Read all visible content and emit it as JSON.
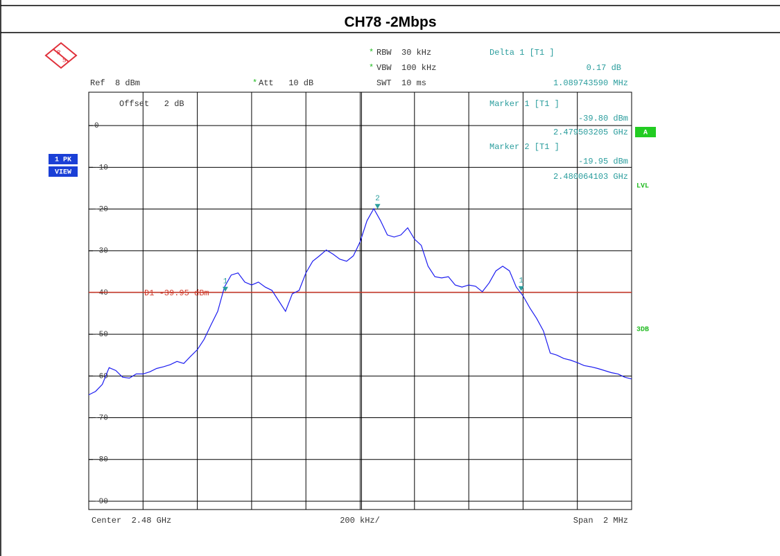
{
  "chart_data": {
    "type": "line",
    "title": "CH78 -2Mbps",
    "logo": [
      "R",
      "S"
    ],
    "settings": {
      "rbw_star": "*",
      "rbw": "RBW  30 kHz",
      "vbw_star": "*",
      "vbw": "VBW  100 kHz",
      "swt": "SWT  10 ms",
      "ref": "Ref  8 dBm",
      "att_star": "*",
      "att": "Att   10 dB",
      "offset": "Offset   2 dB"
    },
    "side_labels": {
      "trace_mode": "1 PK",
      "view": "VIEW",
      "a": "A",
      "lvl": "LVL",
      "db3": "3DB"
    },
    "footer": {
      "center": "Center  2.48 GHz",
      "per_div": "200 kHz/",
      "span": "Span  2 MHz"
    },
    "xlim": [
      2.479,
      2.481
    ],
    "ylim": [
      -92,
      8
    ],
    "yticks": [
      0,
      -10,
      -20,
      -30,
      -40,
      -50,
      -60,
      -70,
      -80,
      -90
    ],
    "grid": true,
    "display_line": {
      "label": "D1 -39.95 dBm",
      "value": -39.95,
      "color": "#d03a2a"
    },
    "markers": [
      {
        "name": "1",
        "header": "Marker 1 [T1 ]",
        "x": 2.479503205,
        "value": -39.8,
        "value_label": "-39.80 dBm",
        "x_label": "2.479503205 GHz"
      },
      {
        "name": "2",
        "header": "Marker 2 [T1 ]",
        "x": 2.480064103,
        "value": -19.95,
        "value_label": "-19.95 dBm",
        "x_label": "2.480064103 GHz"
      }
    ],
    "delta_marker": {
      "name": "1",
      "header": "Delta 1 [T1 ]",
      "x": 0.00108974359,
      "value": 0.17,
      "value_label": "0.17 dB",
      "x_label": "1.089743590 MHz"
    },
    "marker_color": "#2a9d9d",
    "series": [
      {
        "name": "1 PK",
        "color": "#1c1cf0",
        "x": [
          2.479,
          2.479025,
          2.47905,
          2.479075,
          2.4791,
          2.479125,
          2.47915,
          2.479175,
          2.4792,
          2.479225,
          2.47925,
          2.479275,
          2.4793,
          2.479325,
          2.47935,
          2.479375,
          2.4794,
          2.479425,
          2.47945,
          2.479475,
          2.4795,
          2.479525,
          2.47955,
          2.479575,
          2.4796,
          2.479625,
          2.47965,
          2.479675,
          2.4797,
          2.479725,
          2.47975,
          2.479775,
          2.4798,
          2.479825,
          2.47985,
          2.479875,
          2.4799,
          2.479925,
          2.47995,
          2.479975,
          2.48,
          2.480025,
          2.48005,
          2.480075,
          2.4801,
          2.480125,
          2.48015,
          2.480175,
          2.4802,
          2.480225,
          2.48025,
          2.480275,
          2.4803,
          2.480325,
          2.48035,
          2.480375,
          2.4804,
          2.480425,
          2.48045,
          2.480475,
          2.4805,
          2.480525,
          2.48055,
          2.480575,
          2.4806,
          2.480625,
          2.48065,
          2.480675,
          2.4807,
          2.480725,
          2.48075,
          2.480775,
          2.4808,
          2.480825,
          2.48085,
          2.480875,
          2.4809,
          2.480925,
          2.48095,
          2.480975,
          2.481
        ],
        "values": [
          -64.5,
          -63.7,
          -62,
          -58,
          -58.7,
          -60.3,
          -60.5,
          -59.5,
          -59.5,
          -59,
          -58.2,
          -57.8,
          -57.3,
          -56.5,
          -57,
          -55.3,
          -53.7,
          -51.2,
          -47.8,
          -44.5,
          -38.7,
          -35.8,
          -35.3,
          -37.5,
          -38.2,
          -37.5,
          -38.7,
          -39.5,
          -42,
          -44.5,
          -40.3,
          -39.5,
          -35.3,
          -32.5,
          -31.2,
          -29.8,
          -30.8,
          -32,
          -32.5,
          -31.2,
          -27.8,
          -22.8,
          -19.9,
          -22.8,
          -26.2,
          -26.7,
          -26.2,
          -24.5,
          -27.2,
          -28.7,
          -33.7,
          -36.2,
          -36.5,
          -36.2,
          -38.2,
          -38.7,
          -38.2,
          -38.5,
          -39.8,
          -37.7,
          -34.8,
          -33.7,
          -34.8,
          -38.7,
          -40.8,
          -43.7,
          -46.2,
          -49.2,
          -54.5,
          -55,
          -55.8,
          -56.2,
          -56.8,
          -57.5,
          -57.8,
          -58.2,
          -58.7,
          -59.2,
          -59.5,
          -60.3,
          -60.7
        ]
      }
    ]
  }
}
